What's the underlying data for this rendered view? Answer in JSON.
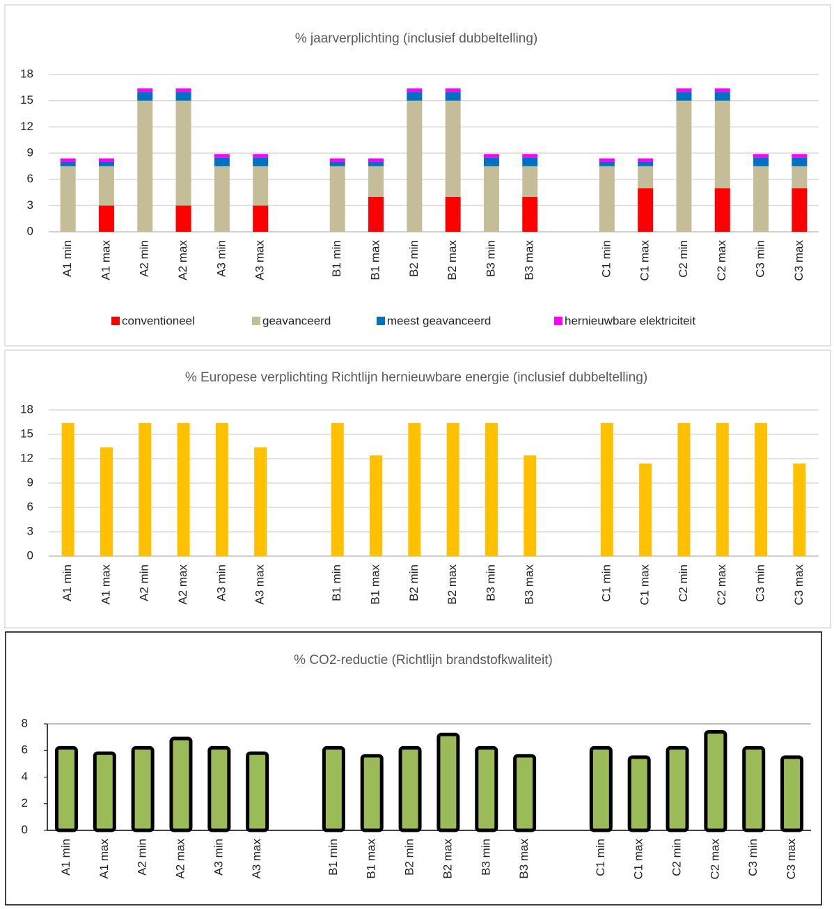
{
  "chart_data": [
    {
      "type": "stacked_bar",
      "title": "% jaarverplichting (inclusief dubbeltelling)",
      "categories": [
        "A1 min",
        "A1 max",
        "A2 min",
        "A2 max",
        "A3 min",
        "A3 max",
        null,
        "B1 min",
        "B1 max",
        "B2 min",
        "B2 max",
        "B3 min",
        "B3 max",
        null,
        "C1 min",
        "C1 max",
        "C2 min",
        "C2 max",
        "C3 min",
        "C3 max"
      ],
      "series": [
        {
          "name": "conventioneel",
          "color": "#ff0000",
          "values": [
            0,
            3,
            0,
            3,
            0,
            3,
            null,
            0,
            4,
            0,
            4,
            0,
            4,
            null,
            0,
            5,
            0,
            5,
            0,
            5
          ]
        },
        {
          "name": "geavanceerd",
          "color": "#c4bd97",
          "values": [
            7.5,
            4.5,
            15,
            12,
            7.5,
            4.5,
            null,
            7.5,
            3.5,
            15,
            11,
            7.5,
            3.5,
            null,
            7.5,
            2.5,
            15,
            10,
            7.5,
            2.5
          ]
        },
        {
          "name": "meest geavanceerd",
          "color": "#0070c0",
          "values": [
            0.5,
            0.5,
            1,
            1,
            1,
            1,
            null,
            0.5,
            0.5,
            1,
            1,
            1,
            1,
            null,
            0.5,
            0.5,
            1,
            1,
            1,
            1
          ]
        },
        {
          "name": "hernieuwbare elektriciteit",
          "color": "#ff00ff",
          "values": [
            0.4,
            0.4,
            0.4,
            0.4,
            0.4,
            0.4,
            null,
            0.4,
            0.4,
            0.4,
            0.4,
            0.4,
            0.4,
            null,
            0.4,
            0.4,
            0.4,
            0.4,
            0.4,
            0.4
          ]
        }
      ],
      "ylim": [
        0,
        18
      ],
      "yticks": [
        0,
        3,
        6,
        9,
        12,
        15,
        18
      ],
      "grid": true,
      "legend": "bottom"
    },
    {
      "type": "bar",
      "title": "% Europese verplichting Richtlijn hernieuwbare energie (inclusief dubbeltelling)",
      "categories": [
        "A1 min",
        "A1 max",
        "A2 min",
        "A2 max",
        "A3 min",
        "A3 max",
        null,
        "B1 min",
        "B1 max",
        "B2 min",
        "B2 max",
        "B3 min",
        "B3 max",
        null,
        "C1 min",
        "C1 max",
        "C2 min",
        "C2 max",
        "C3 min",
        "C3 max"
      ],
      "values": [
        16.4,
        13.4,
        16.4,
        16.4,
        16.4,
        13.4,
        null,
        16.4,
        12.4,
        16.4,
        16.4,
        16.4,
        12.4,
        null,
        16.4,
        11.4,
        16.4,
        16.4,
        16.4,
        11.4
      ],
      "color": "#ffc000",
      "ylim": [
        0,
        18
      ],
      "yticks": [
        0,
        3,
        6,
        9,
        12,
        15,
        18
      ],
      "grid": true
    },
    {
      "type": "outlined_bar",
      "title": "% CO2-reductie (Richtlijn brandstofkwaliteit)",
      "categories": [
        "A1 min",
        "A1 max",
        "A2 min",
        "A2 max",
        "A3 min",
        "A3 max",
        null,
        "B1 min",
        "B1 max",
        "B2 min",
        "B2 max",
        "B3 min",
        "B3 max",
        null,
        "C1 min",
        "C1 max",
        "C2 min",
        "C2 max",
        "C3 min",
        "C3 max"
      ],
      "values": [
        6.2,
        5.8,
        6.2,
        6.9,
        6.2,
        5.8,
        null,
        6.2,
        5.6,
        6.2,
        7.2,
        6.2,
        5.6,
        null,
        6.2,
        5.5,
        6.2,
        7.4,
        6.2,
        5.5
      ],
      "color": "#9bbb59",
      "ylim": [
        0,
        8
      ],
      "yticks": [
        0,
        2,
        4,
        6,
        8
      ],
      "grid": false
    }
  ]
}
